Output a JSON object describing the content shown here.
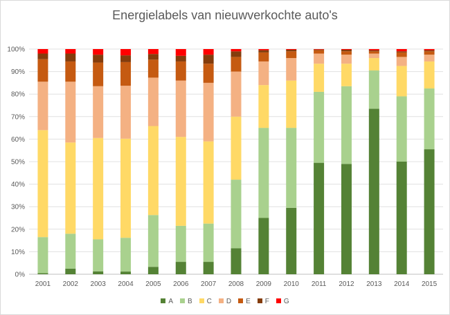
{
  "chart_data": {
    "type": "bar",
    "stacked": "percent",
    "title": "Energielabels van nieuwverkochte auto's",
    "xlabel": "",
    "ylabel": "",
    "ylim": [
      0,
      100
    ],
    "y_ticks": [
      "0%",
      "10%",
      "20%",
      "30%",
      "40%",
      "50%",
      "60%",
      "70%",
      "80%",
      "90%",
      "100%"
    ],
    "grid": true,
    "legend_position": "bottom",
    "categories": [
      "2001",
      "2002",
      "2003",
      "2004",
      "2005",
      "2006",
      "2007",
      "2008",
      "2009",
      "2010",
      "2011",
      "2012",
      "2013",
      "2014",
      "2015"
    ],
    "series": [
      {
        "name": "A",
        "color": "#548235",
        "values": [
          0.5,
          2.5,
          1.3,
          1.2,
          3.3,
          5.5,
          5.5,
          11.5,
          25,
          29.5,
          49.5,
          49,
          73.5,
          50,
          55.5
        ]
      },
      {
        "name": "B",
        "color": "#a9d18e",
        "values": [
          16,
          15.5,
          14.2,
          15,
          23,
          16,
          17,
          30.5,
          40,
          35.5,
          31.5,
          34.5,
          17,
          29,
          27
        ]
      },
      {
        "name": "C",
        "color": "#ffd966",
        "values": [
          47.5,
          40.5,
          45,
          44,
          39.5,
          39.5,
          36.5,
          28,
          19,
          21,
          12.5,
          10,
          5.5,
          13.5,
          12
        ]
      },
      {
        "name": "D",
        "color": "#f4b183",
        "values": [
          21.5,
          27,
          23,
          23.5,
          21.5,
          25,
          26,
          20,
          10.5,
          10,
          4.5,
          4,
          2,
          4,
          3
        ]
      },
      {
        "name": "E",
        "color": "#c55a11",
        "values": [
          10,
          9,
          10.5,
          10.5,
          8,
          8.5,
          8.5,
          6.5,
          4,
          3,
          1.5,
          1.5,
          1,
          2,
          1.5
        ]
      },
      {
        "name": "F",
        "color": "#843c0c",
        "values": [
          2.5,
          3.5,
          3.5,
          3,
          2.5,
          2.5,
          4,
          2.5,
          1,
          0.7,
          0.3,
          0.7,
          0.5,
          0.5,
          0.5
        ]
      },
      {
        "name": "G",
        "color": "#ff0000",
        "values": [
          2,
          2,
          2.5,
          2.8,
          2.2,
          3,
          2.5,
          1,
          0.5,
          0.3,
          0.2,
          0.3,
          0.5,
          1,
          0.5
        ]
      }
    ]
  }
}
